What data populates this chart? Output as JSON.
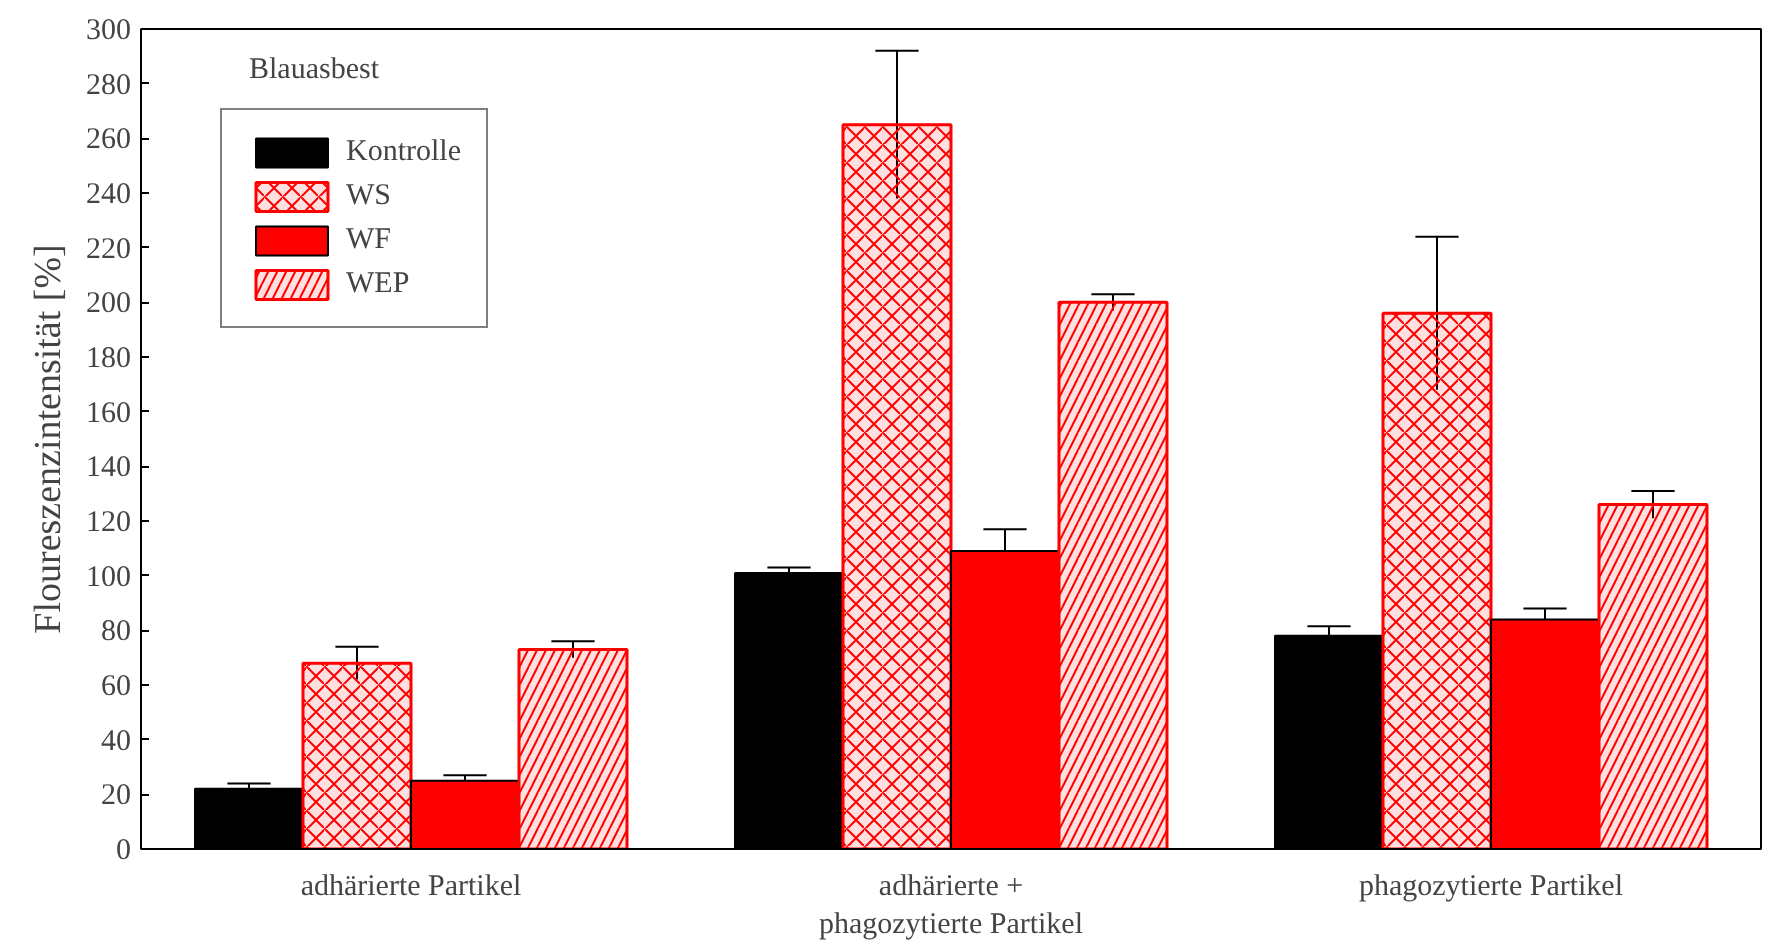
{
  "chart_data": {
    "type": "bar",
    "annotations": [
      "Blauasbest"
    ],
    "ylabel": "Floureszenzintensität [%]",
    "categories": [
      "adhärierte Partikel",
      "adhärierte +\nphagozytierte Partikel",
      "phagozytierte Partikel"
    ],
    "series": [
      {
        "name": "Kontrolle",
        "color": "#000000",
        "values": [
          22,
          101,
          78
        ],
        "errors": [
          2,
          2,
          3.5
        ]
      },
      {
        "name": "WS",
        "color": "#ff0000",
        "values": [
          68,
          265,
          196
        ],
        "errors": [
          6,
          27,
          28
        ]
      },
      {
        "name": "WF",
        "color": "#ff0000",
        "values": [
          25,
          109,
          84
        ],
        "errors": [
          2,
          8,
          4
        ]
      },
      {
        "name": "WEP",
        "color": "#ff0000",
        "values": [
          73,
          200,
          126
        ],
        "errors": [
          3,
          3,
          5
        ]
      }
    ],
    "ylim": [
      0,
      300
    ],
    "yticks": [
      0,
      20,
      40,
      60,
      80,
      100,
      120,
      140,
      160,
      180,
      200,
      220,
      240,
      260,
      280,
      300
    ],
    "grid": false,
    "legend": "top left"
  }
}
